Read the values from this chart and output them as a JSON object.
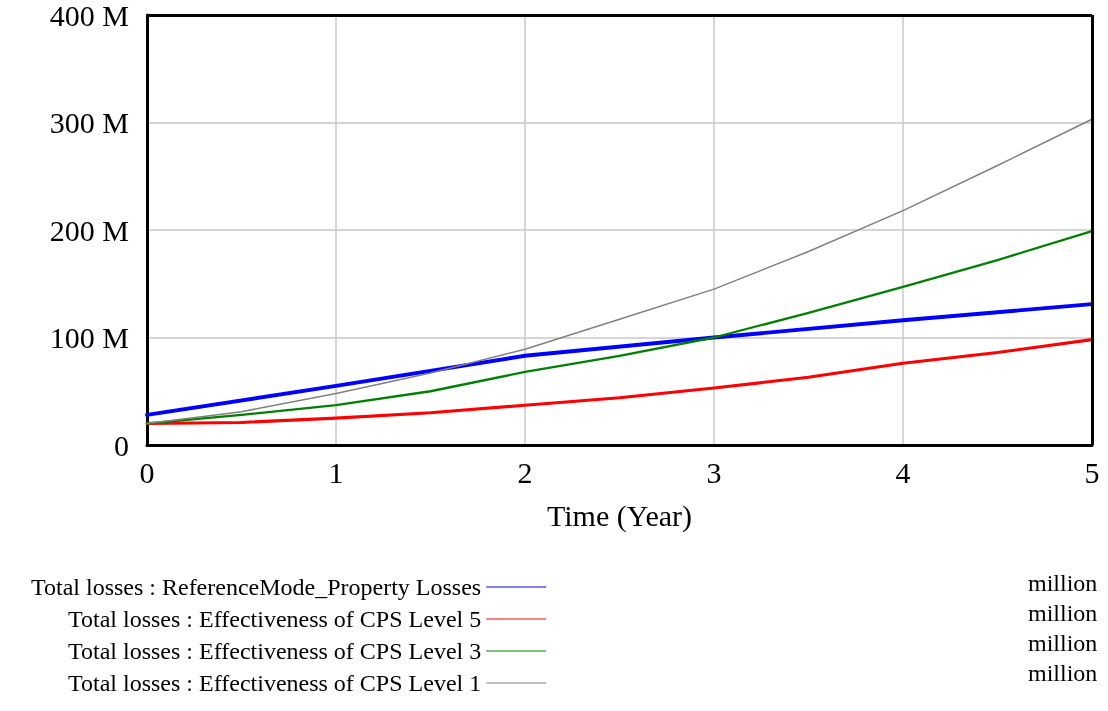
{
  "chart_data": {
    "type": "line",
    "xlabel": "Time (Year)",
    "x": [
      0,
      0.5,
      1,
      1.5,
      2,
      2.5,
      3,
      3.5,
      4,
      4.5,
      5
    ],
    "xlim": [
      0,
      5
    ],
    "xticks": [
      0,
      1,
      2,
      3,
      4,
      5
    ],
    "ylim": [
      0,
      400
    ],
    "yticks": [
      {
        "value": 0,
        "label": "0"
      },
      {
        "value": 100,
        "label": "100 M"
      },
      {
        "value": 200,
        "label": "200 M"
      },
      {
        "value": 300,
        "label": "300 M"
      },
      {
        "value": 400,
        "label": "400 M"
      }
    ],
    "grid": true,
    "legend": "bottom",
    "marker": "none",
    "line_style": "solid",
    "series": [
      {
        "name": "Total losses : ReferenceMode_Property Losses",
        "color": "#0000ff",
        "x": [
          0,
          1,
          2,
          3,
          4,
          5
        ],
        "values": [
          28,
          55,
          83,
          100,
          116,
          131
        ]
      },
      {
        "name": "Total losses : Effectiveness of CPS Level 5",
        "color": "#ff0000",
        "values": [
          20,
          21,
          25,
          30,
          37,
          44,
          53,
          63,
          76,
          86,
          98
        ]
      },
      {
        "name": "Total losses : Effectiveness of CPS Level 3",
        "color": "#008000",
        "values": [
          20,
          28,
          37,
          50,
          68,
          83,
          100,
          123,
          147,
          172,
          199
        ]
      },
      {
        "name": "Total losses : Effectiveness of CPS Level 1",
        "color": "#808080",
        "values": [
          20,
          31,
          48,
          67,
          89,
          117,
          145,
          180,
          218,
          260,
          303
        ]
      }
    ],
    "annotations": [
      "million",
      "million",
      "million",
      "million"
    ]
  }
}
